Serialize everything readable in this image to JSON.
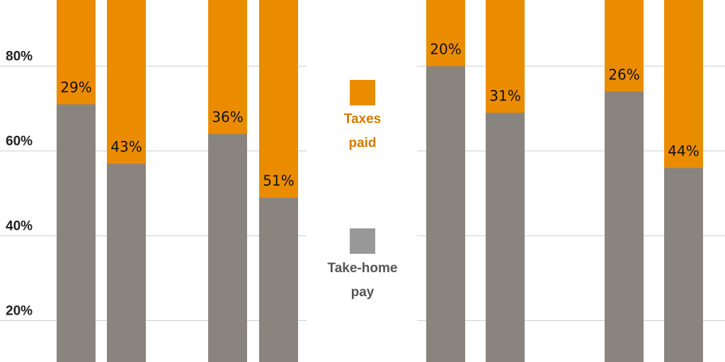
{
  "chart_data": {
    "type": "bar",
    "stacked": true,
    "ylim": [
      0,
      100
    ],
    "yticks": [
      {
        "value": 20,
        "label": "20%"
      },
      {
        "value": 40,
        "label": "40%"
      },
      {
        "value": 60,
        "label": "60%"
      },
      {
        "value": 80,
        "label": "80%"
      }
    ],
    "grid": true,
    "colors": {
      "taxes": "#EB8C00",
      "take_home": "#8A847E",
      "grid": "#D0D0D0"
    },
    "bars": [
      {
        "take_home": 71,
        "taxes": 29,
        "label": "29%"
      },
      {
        "take_home": 57,
        "taxes": 43,
        "label": "43%"
      },
      {
        "take_home": 64,
        "taxes": 36,
        "label": "36%"
      },
      {
        "take_home": 49,
        "taxes": 51,
        "label": "51%"
      },
      {
        "take_home": 80,
        "taxes": 20,
        "label": "20%"
      },
      {
        "take_home": 69,
        "taxes": 31,
        "label": "31%"
      },
      {
        "take_home": 74,
        "taxes": 26,
        "label": "26%"
      },
      {
        "take_home": 56,
        "taxes": 44,
        "label": "44%"
      }
    ]
  },
  "legend": {
    "taxes": {
      "line1": "Taxes",
      "line2": "paid",
      "color": "#EB8C00",
      "text_color": "#D37A00"
    },
    "take_home": {
      "line1": "Take-home",
      "line2": "pay",
      "color": "#999999",
      "text_color": "#555555"
    }
  }
}
